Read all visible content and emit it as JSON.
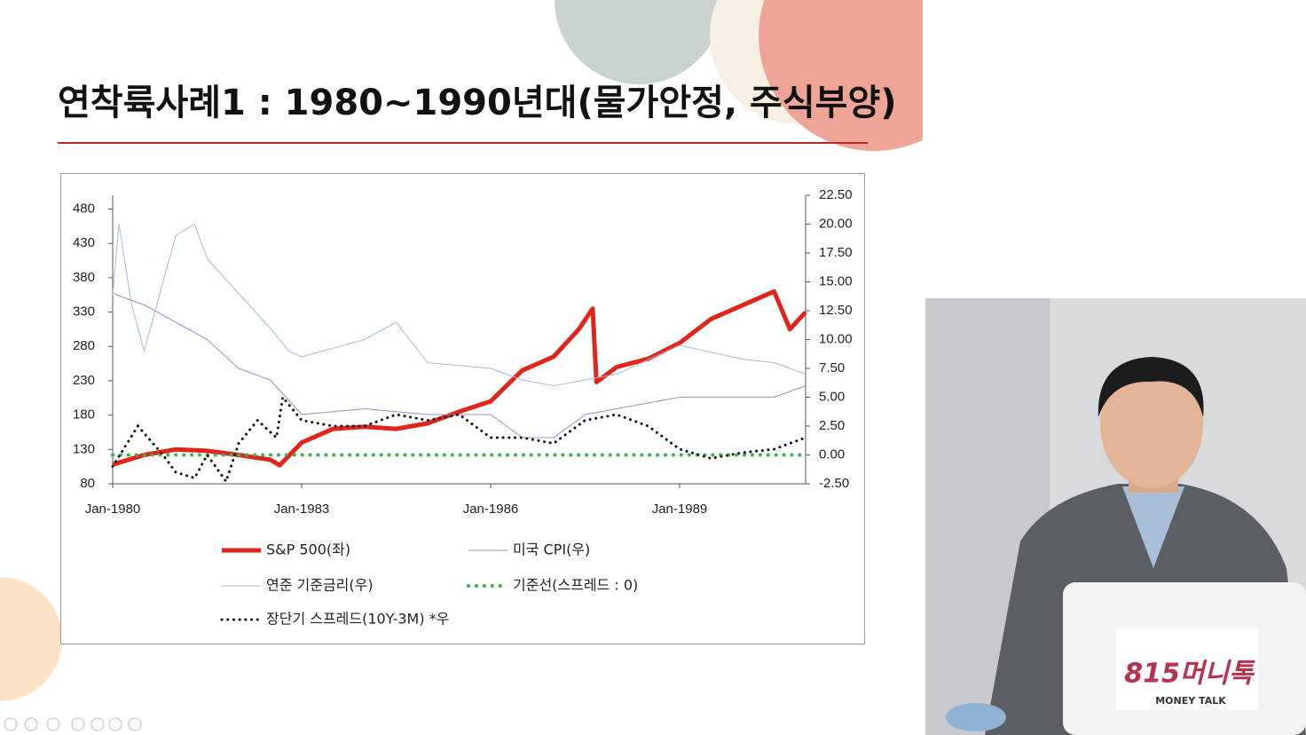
{
  "slide": {
    "title": "연착륙사례1 : 1980~1990년대(물가안정, 주식부양)"
  },
  "chart_data": {
    "type": "line",
    "xlim": [
      1980,
      1991
    ],
    "xticks": [
      {
        "value": 1980,
        "label": "Jan-1980"
      },
      {
        "value": 1983,
        "label": "Jan-1983"
      },
      {
        "value": 1986,
        "label": "Jan-1986"
      },
      {
        "value": 1989,
        "label": "Jan-1989"
      }
    ],
    "ylim": [
      80,
      500
    ],
    "yticks": [
      80,
      130,
      180,
      230,
      280,
      330,
      380,
      430,
      480
    ],
    "y2lim": [
      -2.5,
      22.5
    ],
    "y2ticks": [
      {
        "value": -2.5,
        "label": "-2.50"
      },
      {
        "value": 0,
        "label": "0.00"
      },
      {
        "value": 2.5,
        "label": "2.50"
      },
      {
        "value": 5,
        "label": "5.00"
      },
      {
        "value": 7.5,
        "label": "7.50"
      },
      {
        "value": 10,
        "label": "10.00"
      },
      {
        "value": 12.5,
        "label": "12.50"
      },
      {
        "value": 15,
        "label": "15.00"
      },
      {
        "value": 17.5,
        "label": "17.50"
      },
      {
        "value": 20,
        "label": "20.00"
      },
      {
        "value": 22.5,
        "label": "22.50"
      }
    ],
    "series": [
      {
        "name": "S&P 500(좌)",
        "color": "#e0261b",
        "style": "solid",
        "width": 5,
        "x": [
          1980,
          1980.5,
          1981,
          1981.5,
          1982,
          1982.5,
          1982.65,
          1983,
          1983.5,
          1984,
          1984.5,
          1985,
          1985.5,
          1986,
          1986.5,
          1987,
          1987.4,
          1987.62,
          1987.68,
          1988,
          1988.5,
          1989,
          1989.5,
          1990,
          1990.5,
          1990.75,
          1991
        ],
        "values": [
          108,
          122,
          130,
          128,
          122,
          115,
          107,
          140,
          160,
          163,
          160,
          168,
          185,
          200,
          245,
          265,
          305,
          335,
          228,
          250,
          262,
          285,
          320,
          340,
          360,
          305,
          330
        ]
      },
      {
        "name": "미국 CPI(우)",
        "color": "#9a8fc4",
        "style": "solid",
        "width": 1,
        "axis": "y2",
        "x": [
          1980,
          1980.5,
          1981,
          1981.5,
          1982,
          1982.5,
          1983,
          1984,
          1985,
          1986,
          1986.5,
          1987,
          1987.5,
          1988,
          1989,
          1990,
          1990.5,
          1991
        ],
        "values": [
          14,
          13,
          11.5,
          10,
          7.5,
          6.5,
          3.5,
          4,
          3.5,
          3.5,
          1.5,
          1.5,
          3.5,
          4,
          5,
          5,
          5,
          6
        ]
      },
      {
        "name": "연준 기준금리(우)",
        "color": "#a9b9d9",
        "style": "solid",
        "width": 1,
        "axis": "y2",
        "x": [
          1980,
          1980.1,
          1980.3,
          1980.5,
          1980.8,
          1981,
          1981.3,
          1981.5,
          1982,
          1982.5,
          1982.8,
          1983,
          1984,
          1984.5,
          1985,
          1986,
          1986.5,
          1987,
          1988,
          1989,
          1990,
          1990.5,
          1991
        ],
        "values": [
          13.8,
          20,
          13,
          9,
          15,
          19,
          20,
          17,
          14,
          11,
          9,
          8.5,
          10,
          11.5,
          8,
          7.5,
          6.5,
          6,
          7,
          9.5,
          8.3,
          8,
          7
        ]
      },
      {
        "name": "기준선(스프레드 : 0)",
        "color": "#3cb054",
        "style": "dotted",
        "width": 4,
        "axis": "y2",
        "x": [
          1980,
          1991
        ],
        "values": [
          0,
          0
        ]
      },
      {
        "name": "장단기 스프레드(10Y-3M) *우",
        "color": "#111111",
        "style": "dotted",
        "width": 3,
        "axis": "y2",
        "x": [
          1980,
          1980.4,
          1980.8,
          1981,
          1981.3,
          1981.5,
          1981.8,
          1982,
          1982.3,
          1982.6,
          1982.7,
          1983,
          1983.5,
          1984,
          1984.5,
          1985,
          1985.5,
          1986,
          1986.5,
          1987,
          1987.5,
          1988,
          1988.5,
          1989,
          1989.5,
          1990,
          1990.5,
          1991
        ],
        "values": [
          -1,
          2.5,
          0,
          -1.5,
          -2,
          0,
          -2.3,
          1,
          3,
          1.5,
          5,
          3,
          2.5,
          2.5,
          3.5,
          3,
          3.5,
          1.5,
          1.5,
          1,
          3,
          3.5,
          2.5,
          0.5,
          -0.3,
          0.2,
          0.5,
          1.5
        ]
      }
    ]
  },
  "webcam": {
    "logo": "815머니톡",
    "subtitle": "MONEY TALK"
  }
}
